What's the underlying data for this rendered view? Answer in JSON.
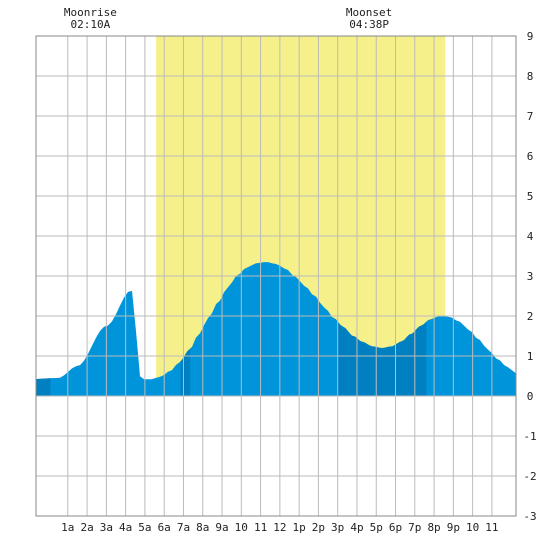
{
  "chart_data": {
    "type": "area",
    "title": "",
    "xlabel": "",
    "ylabel": "",
    "x_range_hours": [
      -0.65,
      24.25
    ],
    "ylim": [
      -3,
      9
    ],
    "grid": true,
    "x_tick_labels": [
      "1a",
      "2a",
      "3a",
      "4a",
      "5a",
      "6a",
      "7a",
      "8a",
      "9a",
      "10",
      "11",
      "12",
      "1p",
      "2p",
      "3p",
      "4p",
      "5p",
      "6p",
      "7p",
      "8p",
      "9p",
      "10",
      "11"
    ],
    "x_tick_hours": [
      1,
      2,
      3,
      4,
      5,
      6,
      7,
      8,
      9,
      10,
      11,
      12,
      13,
      14,
      15,
      16,
      17,
      18,
      19,
      20,
      21,
      22,
      23
    ],
    "y_ticks": [
      -3,
      -2,
      -1,
      0,
      1,
      2,
      3,
      4,
      5,
      6,
      7,
      8,
      9
    ],
    "daylight_hours": [
      5.58,
      20.58
    ],
    "colors": {
      "daylight": "#f5f08a",
      "tide_light": "#0095da",
      "tide_dark": "#0080c0",
      "grid": "#bbbbbb"
    },
    "tide_curve": [
      [
        0.0,
        0.42
      ],
      [
        0.5,
        0.42
      ],
      [
        1.0,
        0.48
      ],
      [
        1.5,
        0.62
      ],
      [
        2.0,
        0.85
      ],
      [
        2.5,
        1.15
      ],
      [
        3.0,
        1.55
      ],
      [
        3.5,
        1.95
      ],
      [
        4.0,
        2.35
      ],
      [
        4.5,
        2.72
      ],
      [
        5.0,
        3.02
      ],
      [
        5.5,
        3.22
      ],
      [
        6.0,
        3.32
      ],
      [
        6.5,
        3.35
      ],
      [
        7.0,
        3.3
      ],
      [
        7.5,
        3.18
      ],
      [
        8.0,
        2.98
      ],
      [
        8.5,
        2.75
      ],
      [
        9.0,
        2.5
      ],
      [
        9.5,
        2.22
      ],
      [
        10.0,
        1.95
      ],
      [
        10.5,
        1.72
      ],
      [
        11.0,
        1.5
      ],
      [
        11.5,
        1.35
      ],
      [
        12.0,
        1.24
      ],
      [
        12.5,
        1.2
      ],
      [
        13.0,
        1.24
      ],
      [
        13.5,
        1.36
      ],
      [
        14.0,
        1.55
      ],
      [
        14.5,
        1.75
      ],
      [
        15.0,
        1.92
      ],
      [
        15.5,
        2.0
      ],
      [
        16.0,
        1.98
      ],
      [
        16.5,
        1.86
      ],
      [
        17.0,
        1.66
      ],
      [
        17.5,
        1.42
      ],
      [
        18.0,
        1.16
      ],
      [
        18.5,
        0.92
      ],
      [
        19.0,
        0.72
      ],
      [
        19.5,
        0.56
      ]
    ],
    "tide_curve_start_hour": 4.8,
    "tide_curve_step_hours": 0.5,
    "dark_bands_hours": [
      [
        -0.65,
        0.1
      ],
      [
        6.85,
        7.35
      ],
      [
        15.0,
        19.6
      ]
    ],
    "annotations": [
      {
        "label": "Moonrise",
        "time": "02:10A",
        "hour": 2.17
      },
      {
        "label": "Moonset",
        "time": "04:38P",
        "hour": 16.63
      }
    ]
  }
}
